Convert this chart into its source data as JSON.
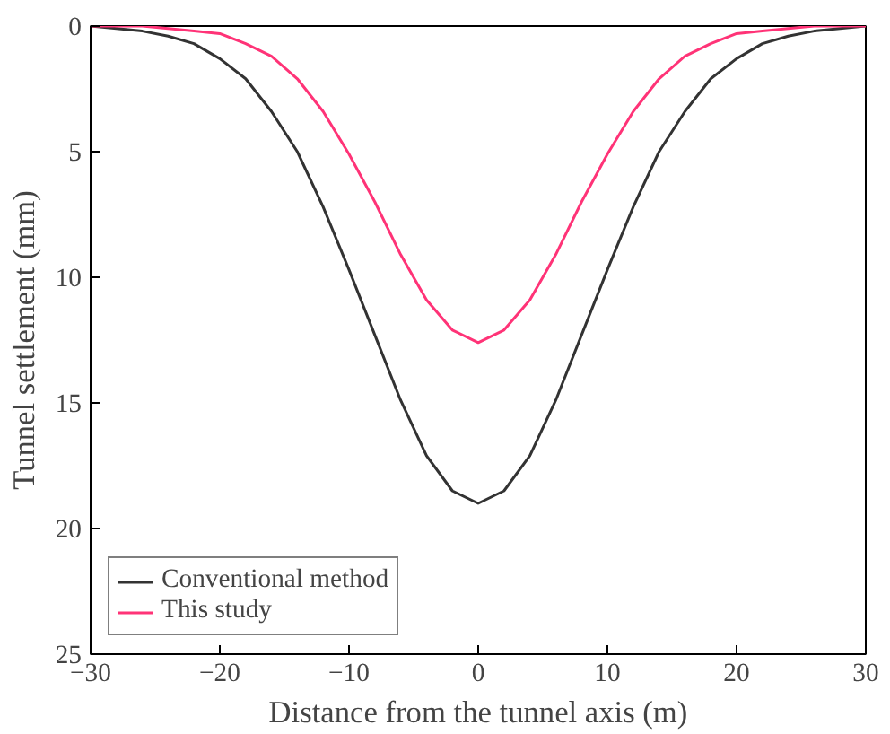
{
  "chart_data": {
    "type": "line",
    "xlabel": "Distance from the tunnel axis (m)",
    "ylabel": "Tunnel settlement (mm)",
    "x": [
      -30,
      -28,
      -26,
      -24,
      -22,
      -20,
      -18,
      -16,
      -14,
      -12,
      -10,
      -8,
      -6,
      -4,
      -2,
      0,
      2,
      4,
      6,
      8,
      10,
      12,
      14,
      16,
      18,
      20,
      22,
      24,
      26,
      28,
      30
    ],
    "series": [
      {
        "name": "Conventional method",
        "color": "#333333",
        "values": [
          0.0,
          0.1,
          0.2,
          0.4,
          0.7,
          1.3,
          2.1,
          3.4,
          5.0,
          7.2,
          9.7,
          12.3,
          14.9,
          17.1,
          18.5,
          19.0,
          18.5,
          17.1,
          14.9,
          12.3,
          9.7,
          7.2,
          5.0,
          3.4,
          2.1,
          1.3,
          0.7,
          0.4,
          0.2,
          0.1,
          0.0
        ]
      },
      {
        "name": "This study",
        "color": "#ff3377",
        "values": [
          0.0,
          0.0,
          0.0,
          0.1,
          0.2,
          0.3,
          0.7,
          1.2,
          2.1,
          3.4,
          5.1,
          7.0,
          9.1,
          10.9,
          12.1,
          12.6,
          12.1,
          10.9,
          9.1,
          7.0,
          5.1,
          3.4,
          2.1,
          1.2,
          0.7,
          0.3,
          0.2,
          0.1,
          0.0,
          0.0,
          0.0
        ]
      }
    ],
    "xlim": [
      -30,
      30
    ],
    "xticks": [
      -30,
      -20,
      -10,
      0,
      10,
      20,
      30
    ],
    "ylim": [
      25,
      0
    ],
    "yticks": [
      0,
      5,
      10,
      15,
      20,
      25
    ],
    "grid": false,
    "legend": "bottom left",
    "marker": "none",
    "line_style": "solid"
  }
}
